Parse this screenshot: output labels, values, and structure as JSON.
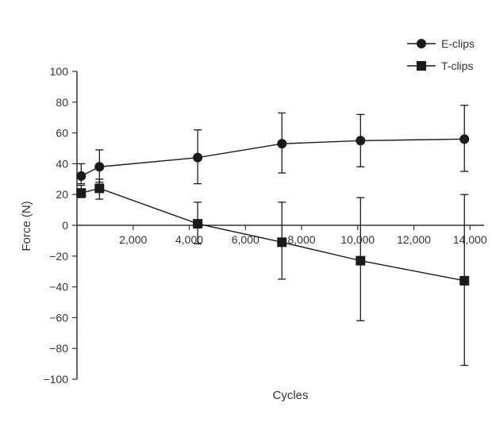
{
  "chart_data": {
    "type": "line",
    "title": "",
    "xlabel": "Cycles",
    "ylabel": "Force (N)",
    "xlim": [
      0,
      14500
    ],
    "ylim": [
      -100,
      100
    ],
    "x_ticks": [
      2000,
      4000,
      6000,
      8000,
      10000,
      12000,
      14000
    ],
    "x_tick_labels": [
      "2,000",
      "4,000",
      "6,000",
      "8,000",
      "10,000",
      "12,000",
      "14,000"
    ],
    "y_ticks": [
      100,
      80,
      60,
      40,
      20,
      0,
      -20,
      -40,
      -60,
      -80,
      -100
    ],
    "y_tick_labels": [
      "100",
      "80",
      "60",
      "40",
      "20",
      "0",
      "−20",
      "−40",
      "−60",
      "−80",
      "−100"
    ],
    "grid": false,
    "legend_position": "top-right",
    "colors": {
      "series": "#1a1a1a",
      "axis": "#333333",
      "background": "#ffffff"
    },
    "series": [
      {
        "name": "E-clips",
        "marker": "circle",
        "x": [
          150,
          800,
          4300,
          7300,
          10100,
          13800
        ],
        "y": [
          32,
          38,
          44,
          53,
          55,
          56
        ],
        "error_low": [
          27,
          28,
          27,
          34,
          38,
          35
        ],
        "error_high": [
          40,
          49,
          62,
          73,
          72,
          78
        ]
      },
      {
        "name": "T-clips",
        "marker": "square",
        "x": [
          150,
          800,
          4300,
          7300,
          10100,
          13800
        ],
        "y": [
          21,
          24,
          1,
          -11,
          -23,
          -36
        ],
        "error_low": [
          18,
          17,
          -12,
          -35,
          -62,
          -91
        ],
        "error_high": [
          26,
          30,
          15,
          15,
          18,
          20
        ]
      }
    ]
  }
}
